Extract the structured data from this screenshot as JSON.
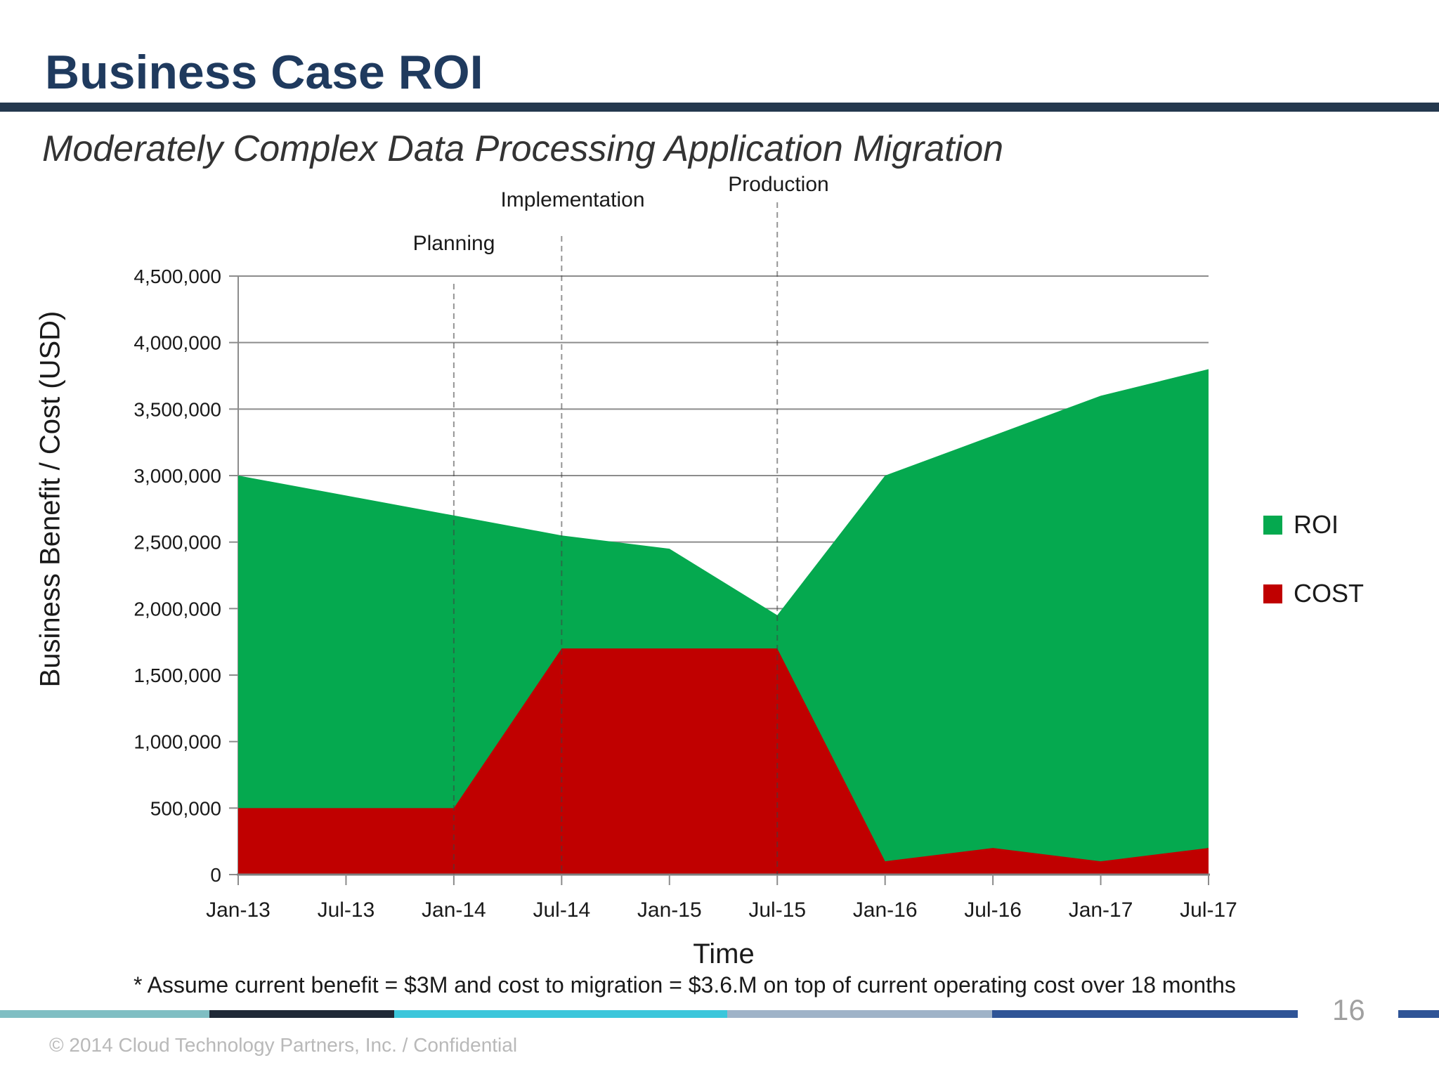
{
  "header": {
    "title": "Business Case ROI",
    "subtitle": "Moderately Complex Data Processing Application Migration"
  },
  "chart_data": {
    "type": "area",
    "categories": [
      "Jan-13",
      "Jul-13",
      "Jan-14",
      "Jul-14",
      "Jan-15",
      "Jul-15",
      "Jan-16",
      "Jul-16",
      "Jan-17",
      "Jul-17"
    ],
    "series": [
      {
        "name": "ROI",
        "color": "#05A94F",
        "values": [
          3000000,
          2850000,
          2700000,
          2550000,
          2450000,
          1950000,
          3000000,
          3300000,
          3600000,
          3800000
        ]
      },
      {
        "name": "COST",
        "color": "#C00000",
        "values": [
          500000,
          500000,
          500000,
          1700000,
          1700000,
          1700000,
          100000,
          200000,
          100000,
          200000
        ]
      }
    ],
    "ylim": [
      0,
      4500000
    ],
    "ytick_step": 500000,
    "xlabel": "Time",
    "ylabel": "Business Benefit / Cost (USD)",
    "grid": "horizontal gridlines on, vertical off",
    "legend_position": "right",
    "phases": [
      {
        "label": "Planning",
        "at_category": "Jan-14"
      },
      {
        "label": "Implementation",
        "at_category": "Jul-14"
      },
      {
        "label": "Production",
        "at_category": "Jul-15"
      }
    ]
  },
  "footnote": "* Assume current benefit = $3M and cost to migration = $3.6.M on top of current operating cost over 18 months",
  "footer": {
    "copyright": "© 2014 Cloud Technology Partners, Inc.  /  Confidential",
    "page_number": "16",
    "bar_colors": [
      "#7FBEC3",
      "#1F2937",
      "#3BC6DB",
      "#9FB3C8",
      "#2F5496",
      "#2F5496"
    ]
  },
  "colors": {
    "title_navy": "#1F3A5E",
    "rule_navy": "#24384E",
    "roi_green": "#05A94F",
    "cost_red": "#C00000",
    "gridline_gray": "#8C8C8C"
  }
}
